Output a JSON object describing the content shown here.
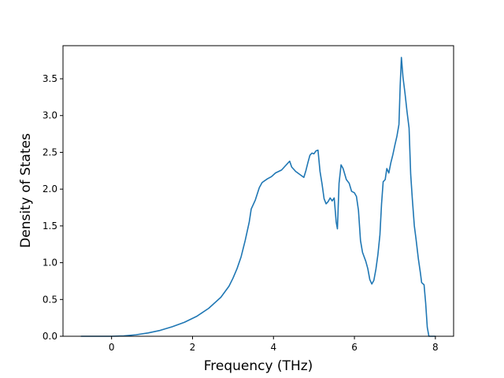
{
  "chart_data": {
    "type": "line",
    "xlabel": "Frequency (THz)",
    "ylabel": "Density of States",
    "xlim": [
      -1.2,
      8.45
    ],
    "ylim": [
      0.0,
      3.95
    ],
    "xticks": [
      0,
      2,
      4,
      6,
      8
    ],
    "yticks": [
      0.0,
      0.5,
      1.0,
      1.5,
      2.0,
      2.5,
      3.0,
      3.5
    ],
    "xtick_labels": [
      "0",
      "2",
      "4",
      "6",
      "8"
    ],
    "ytick_labels": [
      "0.0",
      "0.5",
      "1.0",
      "1.5",
      "2.0",
      "2.5",
      "3.0",
      "3.5"
    ],
    "grid": false,
    "series": [
      {
        "color": "#1f77b4",
        "points": [
          [
            -0.75,
            0.0
          ],
          [
            -0.3,
            0.0
          ],
          [
            0.0,
            0.0
          ],
          [
            0.3,
            0.005
          ],
          [
            0.6,
            0.02
          ],
          [
            0.9,
            0.045
          ],
          [
            1.2,
            0.08
          ],
          [
            1.5,
            0.13
          ],
          [
            1.8,
            0.19
          ],
          [
            2.1,
            0.27
          ],
          [
            2.4,
            0.38
          ],
          [
            2.7,
            0.53
          ],
          [
            2.9,
            0.68
          ],
          [
            3.0,
            0.79
          ],
          [
            3.1,
            0.92
          ],
          [
            3.2,
            1.08
          ],
          [
            3.3,
            1.3
          ],
          [
            3.4,
            1.55
          ],
          [
            3.45,
            1.73
          ],
          [
            3.55,
            1.85
          ],
          [
            3.65,
            2.02
          ],
          [
            3.72,
            2.09
          ],
          [
            3.85,
            2.14
          ],
          [
            3.95,
            2.17
          ],
          [
            4.05,
            2.22
          ],
          [
            4.2,
            2.26
          ],
          [
            4.3,
            2.32
          ],
          [
            4.4,
            2.38
          ],
          [
            4.45,
            2.3
          ],
          [
            4.55,
            2.24
          ],
          [
            4.65,
            2.2
          ],
          [
            4.75,
            2.16
          ],
          [
            4.8,
            2.25
          ],
          [
            4.85,
            2.36
          ],
          [
            4.9,
            2.46
          ],
          [
            4.95,
            2.49
          ],
          [
            5.0,
            2.48
          ],
          [
            5.05,
            2.52
          ],
          [
            5.1,
            2.53
          ],
          [
            5.15,
            2.24
          ],
          [
            5.2,
            2.07
          ],
          [
            5.25,
            1.87
          ],
          [
            5.3,
            1.8
          ],
          [
            5.35,
            1.83
          ],
          [
            5.4,
            1.88
          ],
          [
            5.45,
            1.84
          ],
          [
            5.5,
            1.88
          ],
          [
            5.55,
            1.55
          ],
          [
            5.58,
            1.46
          ],
          [
            5.62,
            2.08
          ],
          [
            5.67,
            2.33
          ],
          [
            5.72,
            2.28
          ],
          [
            5.8,
            2.13
          ],
          [
            5.87,
            2.08
          ],
          [
            5.93,
            1.97
          ],
          [
            6.0,
            1.95
          ],
          [
            6.05,
            1.9
          ],
          [
            6.1,
            1.71
          ],
          [
            6.15,
            1.3
          ],
          [
            6.2,
            1.14
          ],
          [
            6.28,
            1.02
          ],
          [
            6.33,
            0.92
          ],
          [
            6.38,
            0.77
          ],
          [
            6.43,
            0.71
          ],
          [
            6.48,
            0.76
          ],
          [
            6.53,
            0.91
          ],
          [
            6.58,
            1.11
          ],
          [
            6.63,
            1.38
          ],
          [
            6.67,
            1.8
          ],
          [
            6.71,
            2.1
          ],
          [
            6.76,
            2.13
          ],
          [
            6.8,
            2.28
          ],
          [
            6.85,
            2.22
          ],
          [
            6.9,
            2.36
          ],
          [
            6.95,
            2.47
          ],
          [
            7.0,
            2.6
          ],
          [
            7.05,
            2.72
          ],
          [
            7.1,
            2.88
          ],
          [
            7.13,
            3.4
          ],
          [
            7.16,
            3.79
          ],
          [
            7.2,
            3.52
          ],
          [
            7.25,
            3.3
          ],
          [
            7.3,
            3.05
          ],
          [
            7.35,
            2.83
          ],
          [
            7.39,
            2.2
          ],
          [
            7.43,
            1.87
          ],
          [
            7.48,
            1.5
          ],
          [
            7.52,
            1.33
          ],
          [
            7.58,
            1.05
          ],
          [
            7.63,
            0.86
          ],
          [
            7.66,
            0.73
          ],
          [
            7.72,
            0.7
          ],
          [
            7.76,
            0.45
          ],
          [
            7.8,
            0.12
          ],
          [
            7.84,
            0.0
          ],
          [
            8.0,
            0.0
          ]
        ]
      }
    ]
  }
}
